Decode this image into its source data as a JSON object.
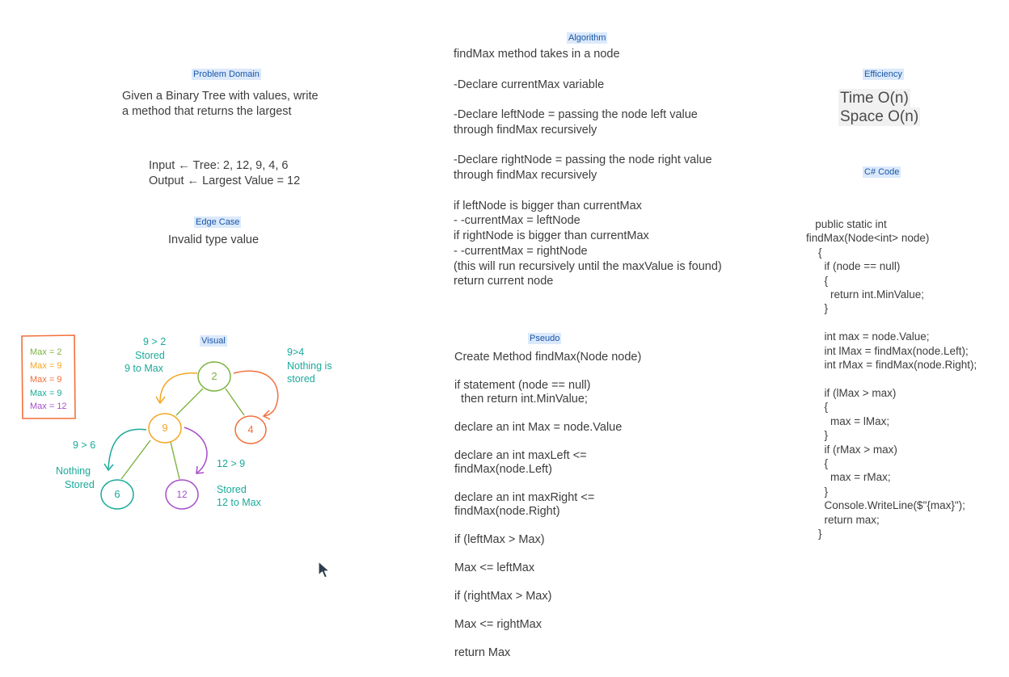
{
  "problem_domain": {
    "tag": "Problem Domain",
    "description": "Given a Binary Tree with values, write\na method that returns the largest",
    "io": "Input ← Tree: 2, 12, 9, 4, 6\nOutput ← Largest Value = 12"
  },
  "edge_case": {
    "tag": "Edge Case",
    "text": "Invalid type value"
  },
  "algorithm": {
    "tag": "Algorithm",
    "text": "findMax method takes in a node\n\n-Declare currentMax variable\n\n-Declare leftNode = passing the node left value\nthrough findMax recursively\n\n-Declare rightNode = passing the node right value\nthrough findMax recursively\n\nif leftNode is bigger than currentMax\n- -currentMax = leftNode\nif rightNode is bigger than currentMax\n- -currentMax = rightNode\n(this will run recursively until the maxValue is found)\nreturn current node"
  },
  "pseudo": {
    "tag": "Pseudo",
    "text": "Create Method findMax(Node node)\n\nif statement (node == null)\n  then return int.MinValue;\n\ndeclare an int Max = node.Value\n\ndeclare an int maxLeft <=\nfindMax(node.Left)\n\ndeclare an int maxRight <=\nfindMax(node.Right)\n\nif (leftMax > Max)\n\nMax <= leftMax\n\nif (rightMax > Max)\n\nMax <= rightMax\n\nreturn Max"
  },
  "efficiency": {
    "tag": "Efficiency",
    "time": "Time O(n)",
    "space": "Space O(n)"
  },
  "csharp": {
    "tag": "C# Code",
    "code": "   public static int\nfindMax(Node<int> node)\n    {\n      if (node == null)\n      {\n        return int.MinValue;\n      }\n\n      int max = node.Value;\n      int lMax = findMax(node.Left);\n      int rMax = findMax(node.Right);\n\n      if (lMax > max)\n      {\n        max = lMax;\n      }\n      if (rMax > max)\n      {\n        max = rMax;\n      }\n      Console.WriteLine($\"{max}\");\n      return max;\n    }"
  },
  "visual": {
    "tag": "Visual",
    "legend": [
      {
        "text": "Max = 2",
        "color": "#7cb342"
      },
      {
        "text": "Max = 9",
        "color": "#f5a623"
      },
      {
        "text": "Max = 9",
        "color": "#f2703a"
      },
      {
        "text": "Max = 9",
        "color": "#1aaa9a"
      },
      {
        "text": "Max = 12",
        "color": "#a64fc8"
      }
    ],
    "nodes": [
      {
        "label": "2",
        "color": "#7cb342"
      },
      {
        "label": "9",
        "color": "#f5a623"
      },
      {
        "label": "4",
        "color": "#f2703a"
      },
      {
        "label": "6",
        "color": "#1aaa9a"
      },
      {
        "label": "12",
        "color": "#a64fc8"
      }
    ],
    "notes": {
      "n9_2_a": "9 > 2",
      "n9_2_b": "Stored",
      "n9_2_c": "9 to Max",
      "n9_4_a": "9>4",
      "n9_4_b": "Nothing is",
      "n9_4_c": "stored",
      "n9_6": "9 > 6",
      "n_nothing_a": "Nothing",
      "n_nothing_b": "Stored",
      "n12_9": "12 > 9",
      "n12_a": "Stored",
      "n12_b": "12 to Max"
    },
    "colors": {
      "teal": "#1aaa9a",
      "green": "#7cb342",
      "orange": "#f5a623",
      "red": "#f2703a",
      "purple": "#a64fc8"
    }
  }
}
